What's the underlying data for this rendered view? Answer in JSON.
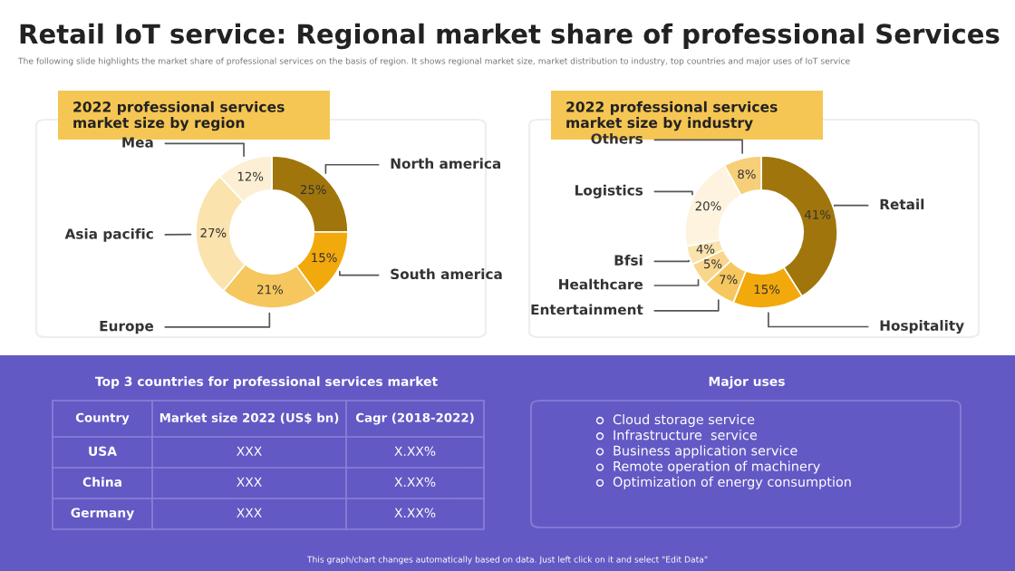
{
  "chart_data": [
    {
      "type": "other",
      "title": "Retail IoT service: Regional market share of professional Services",
      "subtitle": "The following slide highlights the market share of professional services on the basis of region. It shows regional market size, market distribution to industry, top countries and major uses of IoT service",
      "annotations": [
        "This graph/chart changes automatically based on data. Just left click on it and select \"Edit Data\""
      ]
    },
    {
      "type": "donut",
      "title": "2022 professional services market size by region",
      "categories": [
        "North america",
        "South america",
        "Europe",
        "Asia pacific",
        "Mea"
      ],
      "values": [
        25,
        15,
        21,
        27,
        12
      ],
      "colors": [
        "#a0760c",
        "#f2a90c",
        "#f6c75e",
        "#fbe3ae",
        "#fcefd4"
      ],
      "value_labels": [
        "25%",
        "15%",
        "21%",
        "27%",
        "12%"
      ]
    },
    {
      "type": "donut",
      "title": "2022 professional services market size by industry",
      "categories": [
        "Retail",
        "Hospitality",
        "Entertainment",
        "Healthcare",
        "Bfsi",
        "Logistics",
        "Others"
      ],
      "values": [
        41,
        15,
        7,
        5,
        4,
        20,
        8
      ],
      "colors": [
        "#a0760c",
        "#f2a90c",
        "#f6c75e",
        "#f8d68c",
        "#fbe3ae",
        "#fdf3df",
        "#f6cf78"
      ],
      "value_labels": [
        "41%",
        "15%",
        "7%",
        "5%",
        "4%",
        "20%",
        "8%"
      ]
    },
    {
      "type": "other",
      "title": "Top 3 countries for professional services market",
      "categories": [
        "Country",
        "Market size 2022 (US$ bn)",
        "Cagr (2018-2022)"
      ],
      "annotations": [
        "USA",
        "XXX",
        "X.XX%",
        "China",
        "XXX",
        "X.XX%",
        "Germany",
        "XXX",
        "X.XX%"
      ]
    },
    {
      "type": "other",
      "title": "Major uses",
      "annotations": [
        "Cloud storage service",
        "Infrastructure  service",
        "Business application service",
        "Remote operation of machinery",
        "Optimization of energy consumption"
      ]
    }
  ]
}
